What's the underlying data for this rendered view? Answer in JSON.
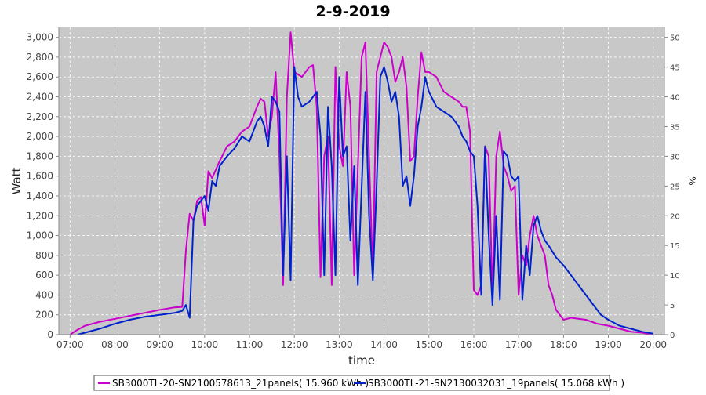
{
  "chart_data": {
    "type": "line",
    "title": "2-9-2019",
    "xlabel": "time",
    "ylabel_left": "Watt",
    "ylabel_right": "%",
    "x_ticks": [
      "07:00",
      "08:00",
      "09:00",
      "10:00",
      "11:00",
      "12:00",
      "13:00",
      "14:00",
      "15:00",
      "16:00",
      "17:00",
      "18:00",
      "19:00",
      "20:00"
    ],
    "xlim": [
      "06:45",
      "20:15"
    ],
    "y_left_ticks": [
      "0",
      "200",
      "400",
      "600",
      "800",
      "1,000",
      "1,200",
      "1,400",
      "1,600",
      "1,800",
      "2,000",
      "2,200",
      "2,400",
      "2,600",
      "2,800",
      "3,000"
    ],
    "ylim_left": [
      0,
      3100
    ],
    "y_right_ticks": [
      "0",
      "5",
      "10",
      "15",
      "20",
      "25",
      "30",
      "35",
      "40",
      "45",
      "50"
    ],
    "ylim_right": [
      0,
      51.67
    ],
    "grid": true,
    "legend_position": "bottom",
    "colors": {
      "plot_bg": "#c8c8c8",
      "grid": "#ffffff",
      "series1": "#cc00cc",
      "series2": "#0022cc"
    },
    "series": [
      {
        "name": "SB3000TL-20-SN2100578613_21panels( 15.960 kWh )",
        "color": "#cc00cc",
        "points": [
          [
            "07:00",
            0
          ],
          [
            "07:10",
            50
          ],
          [
            "07:20",
            90
          ],
          [
            "07:40",
            130
          ],
          [
            "08:00",
            160
          ],
          [
            "08:20",
            190
          ],
          [
            "08:40",
            220
          ],
          [
            "09:00",
            250
          ],
          [
            "09:20",
            275
          ],
          [
            "09:30",
            280
          ],
          [
            "09:35",
            850
          ],
          [
            "09:40",
            1220
          ],
          [
            "09:45",
            1150
          ],
          [
            "09:50",
            1350
          ],
          [
            "09:55",
            1390
          ],
          [
            "10:00",
            1100
          ],
          [
            "10:05",
            1650
          ],
          [
            "10:10",
            1580
          ],
          [
            "10:20",
            1750
          ],
          [
            "10:30",
            1900
          ],
          [
            "10:40",
            1950
          ],
          [
            "10:50",
            2050
          ],
          [
            "11:00",
            2100
          ],
          [
            "11:10",
            2300
          ],
          [
            "11:15",
            2380
          ],
          [
            "11:20",
            2350
          ],
          [
            "11:25",
            2000
          ],
          [
            "11:30",
            2200
          ],
          [
            "11:35",
            2650
          ],
          [
            "11:40",
            1800
          ],
          [
            "11:45",
            500
          ],
          [
            "11:50",
            2400
          ],
          [
            "11:55",
            3050
          ],
          [
            "12:00",
            2650
          ],
          [
            "12:10",
            2600
          ],
          [
            "12:20",
            2700
          ],
          [
            "12:25",
            2720
          ],
          [
            "12:30",
            2300
          ],
          [
            "12:35",
            580
          ],
          [
            "12:40",
            1800
          ],
          [
            "12:45",
            2000
          ],
          [
            "12:50",
            500
          ],
          [
            "12:55",
            2700
          ],
          [
            "13:00",
            1900
          ],
          [
            "13:05",
            1700
          ],
          [
            "13:10",
            2650
          ],
          [
            "13:15",
            2300
          ],
          [
            "13:20",
            600
          ],
          [
            "13:30",
            2800
          ],
          [
            "13:35",
            2950
          ],
          [
            "13:40",
            1800
          ],
          [
            "13:45",
            600
          ],
          [
            "13:50",
            2650
          ],
          [
            "13:55",
            2800
          ],
          [
            "14:00",
            2950
          ],
          [
            "14:05",
            2900
          ],
          [
            "14:10",
            2800
          ],
          [
            "14:15",
            2550
          ],
          [
            "14:20",
            2650
          ],
          [
            "14:25",
            2800
          ],
          [
            "14:30",
            2500
          ],
          [
            "14:35",
            1750
          ],
          [
            "14:40",
            1800
          ],
          [
            "14:45",
            2400
          ],
          [
            "14:50",
            2850
          ],
          [
            "14:55",
            2650
          ],
          [
            "15:00",
            2650
          ],
          [
            "15:10",
            2600
          ],
          [
            "15:20",
            2450
          ],
          [
            "15:30",
            2400
          ],
          [
            "15:40",
            2350
          ],
          [
            "15:45",
            2300
          ],
          [
            "15:50",
            2300
          ],
          [
            "15:55",
            2050
          ],
          [
            "16:00",
            450
          ],
          [
            "16:05",
            400
          ],
          [
            "16:10",
            500
          ],
          [
            "16:15",
            1900
          ],
          [
            "16:20",
            1800
          ],
          [
            "16:25",
            400
          ],
          [
            "16:30",
            1800
          ],
          [
            "16:35",
            2050
          ],
          [
            "16:40",
            1700
          ],
          [
            "16:45",
            1600
          ],
          [
            "16:50",
            1450
          ],
          [
            "16:55",
            1500
          ],
          [
            "17:00",
            400
          ],
          [
            "17:05",
            800
          ],
          [
            "17:10",
            700
          ],
          [
            "17:15",
            1000
          ],
          [
            "17:20",
            1200
          ],
          [
            "17:25",
            1000
          ],
          [
            "17:30",
            900
          ],
          [
            "17:35",
            800
          ],
          [
            "17:40",
            500
          ],
          [
            "17:45",
            400
          ],
          [
            "17:50",
            250
          ],
          [
            "18:00",
            150
          ],
          [
            "18:10",
            170
          ],
          [
            "18:20",
            160
          ],
          [
            "18:30",
            150
          ],
          [
            "18:45",
            110
          ],
          [
            "19:00",
            90
          ],
          [
            "19:15",
            60
          ],
          [
            "19:30",
            30
          ],
          [
            "19:45",
            20
          ],
          [
            "20:00",
            0
          ]
        ]
      },
      {
        "name": "SB3000TL-21-SN2130032031_19panels( 15.068 kWh )",
        "color": "#0022cc",
        "points": [
          [
            "07:10",
            0
          ],
          [
            "07:20",
            20
          ],
          [
            "07:40",
            60
          ],
          [
            "08:00",
            110
          ],
          [
            "08:20",
            150
          ],
          [
            "08:40",
            180
          ],
          [
            "09:00",
            200
          ],
          [
            "09:20",
            220
          ],
          [
            "09:30",
            240
          ],
          [
            "09:35",
            300
          ],
          [
            "09:40",
            170
          ],
          [
            "09:45",
            1150
          ],
          [
            "09:50",
            1300
          ],
          [
            "10:00",
            1400
          ],
          [
            "10:05",
            1250
          ],
          [
            "10:10",
            1550
          ],
          [
            "10:15",
            1500
          ],
          [
            "10:20",
            1700
          ],
          [
            "10:30",
            1800
          ],
          [
            "10:40",
            1880
          ],
          [
            "10:50",
            2000
          ],
          [
            "11:00",
            1950
          ],
          [
            "11:10",
            2150
          ],
          [
            "11:15",
            2200
          ],
          [
            "11:20",
            2100
          ],
          [
            "11:25",
            1900
          ],
          [
            "11:30",
            2400
          ],
          [
            "11:35",
            2350
          ],
          [
            "11:40",
            2250
          ],
          [
            "11:45",
            600
          ],
          [
            "11:50",
            1800
          ],
          [
            "11:55",
            550
          ],
          [
            "12:00",
            2700
          ],
          [
            "12:05",
            2400
          ],
          [
            "12:10",
            2300
          ],
          [
            "12:20",
            2350
          ],
          [
            "12:30",
            2450
          ],
          [
            "12:35",
            2000
          ],
          [
            "12:40",
            600
          ],
          [
            "12:45",
            2300
          ],
          [
            "12:50",
            1700
          ],
          [
            "12:55",
            600
          ],
          [
            "13:00",
            2600
          ],
          [
            "13:05",
            1800
          ],
          [
            "13:10",
            1900
          ],
          [
            "13:15",
            950
          ],
          [
            "13:20",
            1700
          ],
          [
            "13:25",
            500
          ],
          [
            "13:35",
            2450
          ],
          [
            "13:40",
            1200
          ],
          [
            "13:45",
            550
          ],
          [
            "13:50",
            1500
          ],
          [
            "13:55",
            2600
          ],
          [
            "14:00",
            2700
          ],
          [
            "14:05",
            2550
          ],
          [
            "14:10",
            2350
          ],
          [
            "14:15",
            2450
          ],
          [
            "14:20",
            2200
          ],
          [
            "14:25",
            1500
          ],
          [
            "14:30",
            1600
          ],
          [
            "14:35",
            1300
          ],
          [
            "14:40",
            1600
          ],
          [
            "14:45",
            2100
          ],
          [
            "14:50",
            2300
          ],
          [
            "14:55",
            2600
          ],
          [
            "15:00",
            2450
          ],
          [
            "15:10",
            2300
          ],
          [
            "15:20",
            2250
          ],
          [
            "15:30",
            2200
          ],
          [
            "15:40",
            2100
          ],
          [
            "15:45",
            2000
          ],
          [
            "15:50",
            1950
          ],
          [
            "15:55",
            1850
          ],
          [
            "16:00",
            1800
          ],
          [
            "16:05",
            1300
          ],
          [
            "16:10",
            400
          ],
          [
            "16:15",
            1900
          ],
          [
            "16:20",
            1000
          ],
          [
            "16:25",
            300
          ],
          [
            "16:30",
            1200
          ],
          [
            "16:35",
            350
          ],
          [
            "16:40",
            1850
          ],
          [
            "16:45",
            1800
          ],
          [
            "16:50",
            1600
          ],
          [
            "16:55",
            1550
          ],
          [
            "17:00",
            1600
          ],
          [
            "17:05",
            350
          ],
          [
            "17:10",
            900
          ],
          [
            "17:15",
            600
          ],
          [
            "17:20",
            1100
          ],
          [
            "17:25",
            1200
          ],
          [
            "17:30",
            1050
          ],
          [
            "17:35",
            950
          ],
          [
            "17:40",
            900
          ],
          [
            "17:50",
            780
          ],
          [
            "18:00",
            700
          ],
          [
            "18:10",
            600
          ],
          [
            "18:20",
            500
          ],
          [
            "18:30",
            400
          ],
          [
            "18:40",
            300
          ],
          [
            "18:50",
            200
          ],
          [
            "19:00",
            150
          ],
          [
            "19:15",
            90
          ],
          [
            "19:30",
            60
          ],
          [
            "19:45",
            30
          ],
          [
            "20:00",
            10
          ]
        ]
      }
    ]
  }
}
